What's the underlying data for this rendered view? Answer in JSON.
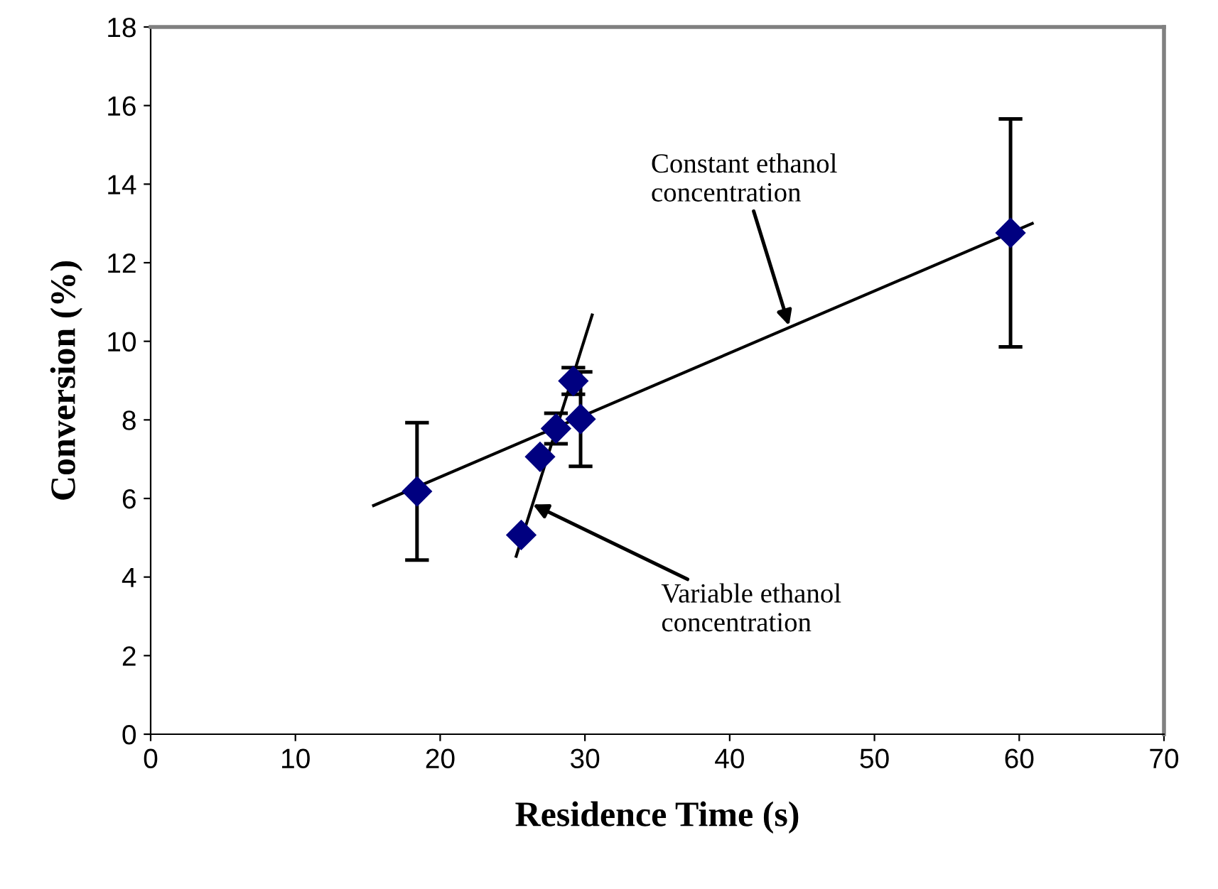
{
  "chart_data": {
    "type": "scatter",
    "xlabel": "Residence Time (s)",
    "ylabel": "Conversion (%)",
    "xlim": [
      0,
      70
    ],
    "ylim": [
      0,
      18
    ],
    "xticks": [
      0,
      10,
      20,
      30,
      40,
      50,
      60,
      70
    ],
    "yticks": [
      0,
      2,
      4,
      6,
      8,
      10,
      12,
      14,
      16,
      18
    ],
    "grid": false,
    "legend": false,
    "series": [
      {
        "color": "#000080",
        "marker": "diamond",
        "x": [
          18.4,
          25.6,
          26.9,
          28.0,
          29.2,
          29.7,
          59.4
        ],
        "values": [
          6.18,
          5.07,
          7.06,
          7.78,
          8.99,
          8.02,
          12.76
        ],
        "errors": [
          1.75,
          null,
          null,
          0.39,
          0.34,
          1.2,
          2.9
        ]
      },
      {
        "type": "line",
        "color": "#000000",
        "marker": "none",
        "line_style": "solid",
        "x": [
          15.4,
          60.9
        ],
        "values": [
          5.82,
          13.0
        ]
      },
      {
        "type": "line",
        "color": "#000000",
        "marker": "none",
        "line_style": "solid",
        "x": [
          25.25,
          30.5
        ],
        "values": [
          4.53,
          10.67
        ]
      }
    ],
    "annotations": [
      {
        "text": "Constant ethanol\nconcentration",
        "x": 44.1,
        "y": 10.4
      },
      {
        "text": "Variable ethanol\nconcentration",
        "x": 26.4,
        "y": 5.85
      }
    ]
  }
}
